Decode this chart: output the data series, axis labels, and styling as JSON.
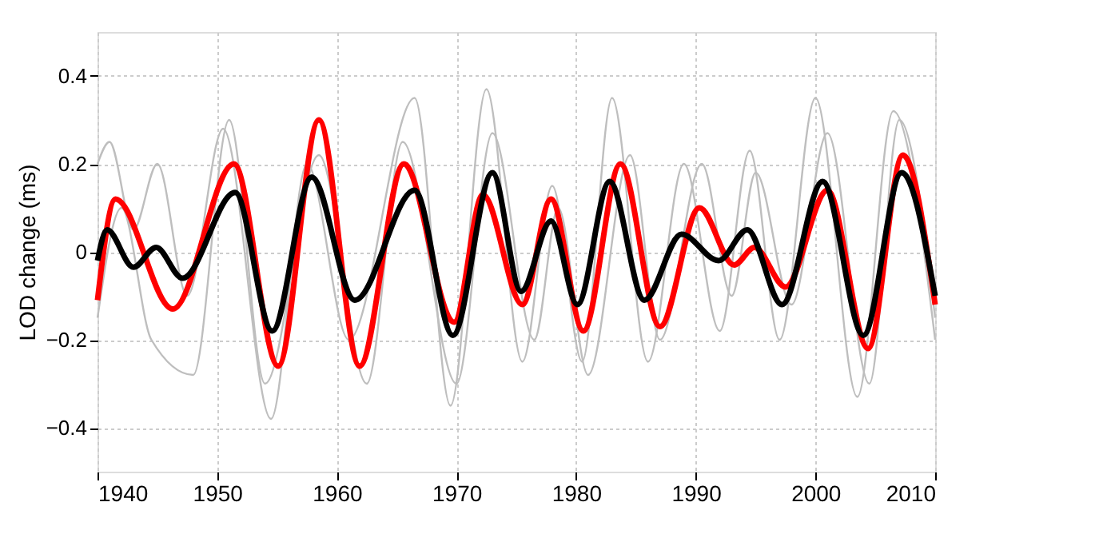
{
  "chart_data": {
    "type": "line",
    "ylabel": "LOD change (ms)",
    "xlim": [
      1940,
      2010
    ],
    "xticks": [
      1940,
      1950,
      1960,
      1970,
      1980,
      1990,
      2000,
      2010
    ],
    "ylim": [
      -0.5,
      0.5
    ],
    "yticks": [
      -0.4,
      -0.2,
      0,
      0.2,
      0.4
    ],
    "grid": true,
    "line_style": "solid",
    "marker": "none",
    "series": [
      {
        "color": "#bebebe",
        "x": [
          1940,
          1941,
          1943,
          1945,
          1947.5,
          1950.5,
          1954.5,
          1957.5,
          1961,
          1966.5,
          1969.5,
          1972.5,
          1975.5,
          1978,
          1980.5,
          1983,
          1986,
          1989,
          1992,
          1994.5,
          1997,
          2000,
          2003.5,
          2006.5,
          2010
        ],
        "values": [
          0.2,
          0.25,
          0.05,
          0.2,
          -0.1,
          0.28,
          -0.38,
          0.2,
          -0.2,
          0.35,
          -0.35,
          0.37,
          -0.25,
          0.15,
          -0.25,
          0.35,
          -0.25,
          0.2,
          -0.18,
          0.23,
          -0.2,
          0.35,
          -0.33,
          0.32,
          -0.2
        ]
      },
      {
        "color": "#bebebe",
        "x": [
          1940,
          1942,
          1944.5,
          1948,
          1951,
          1954,
          1958.5,
          1962.5,
          1965.5,
          1970,
          1973,
          1976.5,
          1978.5,
          1981,
          1984.5,
          1987,
          1990.5,
          1993,
          1995,
          1998,
          2001,
          2004.5,
          2007,
          2010
        ],
        "values": [
          -0.15,
          0.1,
          -0.2,
          -0.28,
          0.3,
          -0.3,
          0.22,
          -0.3,
          0.25,
          -0.3,
          0.27,
          -0.2,
          0.1,
          -0.28,
          0.22,
          -0.2,
          0.2,
          -0.1,
          0.18,
          -0.12,
          0.27,
          -0.3,
          0.3,
          -0.15
        ]
      },
      {
        "color": "#ff0000",
        "x": [
          1940,
          1941.5,
          1946.3,
          1951.4,
          1955.1,
          1958.5,
          1961.9,
          1965.6,
          1969.8,
          1972.2,
          1975.5,
          1977.9,
          1980.6,
          1983.7,
          1987,
          1990.3,
          1993.2,
          1994.9,
          1997.5,
          2001,
          2004.4,
          2007.3,
          2010
        ],
        "values": [
          -0.11,
          0.12,
          -0.13,
          0.2,
          -0.26,
          0.3,
          -0.26,
          0.2,
          -0.16,
          0.13,
          -0.12,
          0.12,
          -0.18,
          0.2,
          -0.17,
          0.1,
          -0.03,
          0.01,
          -0.08,
          0.14,
          -0.22,
          0.22,
          -0.12
        ]
      },
      {
        "color": "#000000",
        "x": [
          1940,
          1940.8,
          1943,
          1944.9,
          1947.1,
          1951.5,
          1954.6,
          1957.9,
          1961.5,
          1966.5,
          1969.7,
          1973,
          1975.4,
          1977.9,
          1980.1,
          1982.8,
          1985.7,
          1988.8,
          1991.9,
          1994.3,
          1997.2,
          2000.6,
          2004,
          2007.2,
          2010
        ],
        "values": [
          -0.02,
          0.05,
          -0.035,
          0.01,
          -0.06,
          0.135,
          -0.18,
          0.17,
          -0.11,
          0.14,
          -0.19,
          0.18,
          -0.09,
          0.07,
          -0.12,
          0.16,
          -0.11,
          0.04,
          -0.02,
          0.05,
          -0.12,
          0.16,
          -0.19,
          0.18,
          -0.1
        ]
      }
    ]
  }
}
